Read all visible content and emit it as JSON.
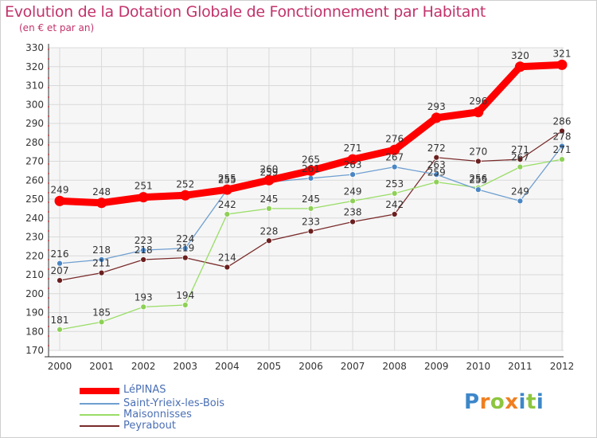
{
  "title": "Evolution de la Dotation Globale de Fonctionnement par Habitant",
  "subtitle": "(en € et par an)",
  "logo": {
    "letters": [
      {
        "ch": "P",
        "color": "#3d87c9"
      },
      {
        "ch": "r",
        "color": "#f07f1f"
      },
      {
        "ch": "o",
        "color": "#8cc63e"
      },
      {
        "ch": "x",
        "color": "#f07f1f"
      },
      {
        "ch": "i",
        "color": "#3d87c9"
      },
      {
        "ch": "t",
        "color": "#8cc63e"
      },
      {
        "ch": "i",
        "color": "#3d87c9"
      }
    ]
  },
  "chart_data": {
    "type": "line",
    "title": "Evolution de la Dotation Globale de Fonctionnement par Habitant",
    "subtitle": "(en € et par an)",
    "x": [
      "2000",
      "2001",
      "2002",
      "2003",
      "2004",
      "2005",
      "2006",
      "2007",
      "2008",
      "2009",
      "2010",
      "2011",
      "2012"
    ],
    "ylim": [
      170,
      330
    ],
    "yticks": [
      170,
      180,
      190,
      200,
      210,
      220,
      230,
      240,
      250,
      260,
      270,
      280,
      290,
      300,
      310,
      320,
      330
    ],
    "grid": true,
    "legend_position": "bottom-left",
    "series": [
      {
        "name": "LéPINAS",
        "color": "#ff0000",
        "values": [
          249,
          248,
          251,
          252,
          255,
          260,
          265,
          271,
          276,
          293,
          296,
          320,
          321
        ],
        "emphasis": true
      },
      {
        "name": "Saint-Yrieix-les-Bois",
        "color": "#6f9fd0",
        "marker": "#4a86c4",
        "values": [
          216,
          218,
          223,
          224,
          255,
          259,
          261,
          263,
          267,
          263,
          255,
          249,
          278
        ]
      },
      {
        "name": "Maisonnisses",
        "color": "#99dd66",
        "marker": "#8ed057",
        "values": [
          181,
          185,
          193,
          194,
          242,
          245,
          245,
          249,
          253,
          259,
          256,
          267,
          271
        ]
      },
      {
        "name": "Peyrabout",
        "color": "#7a2b2b",
        "marker": "#6b1f1f",
        "values": [
          207,
          211,
          218,
          219,
          214,
          228,
          233,
          238,
          242,
          272,
          270,
          271,
          286
        ]
      }
    ],
    "data_labels": [
      [
        "249",
        "248",
        "251",
        "252",
        "255",
        "260",
        "265",
        "271",
        "276",
        "293",
        "296",
        "320",
        "321"
      ],
      [
        "216",
        "218",
        "223",
        "224",
        "255",
        "259",
        "261",
        "263",
        "267",
        "263",
        "255",
        "249",
        "278"
      ],
      [
        "181",
        "185",
        "193",
        "194",
        "242",
        "245",
        "245",
        "249",
        "253",
        "259",
        "256",
        "267",
        "271"
      ],
      [
        "207",
        "211",
        "218",
        "219",
        "214",
        "228",
        "233",
        "238",
        "242",
        "272",
        "270",
        "271",
        "286"
      ]
    ]
  }
}
